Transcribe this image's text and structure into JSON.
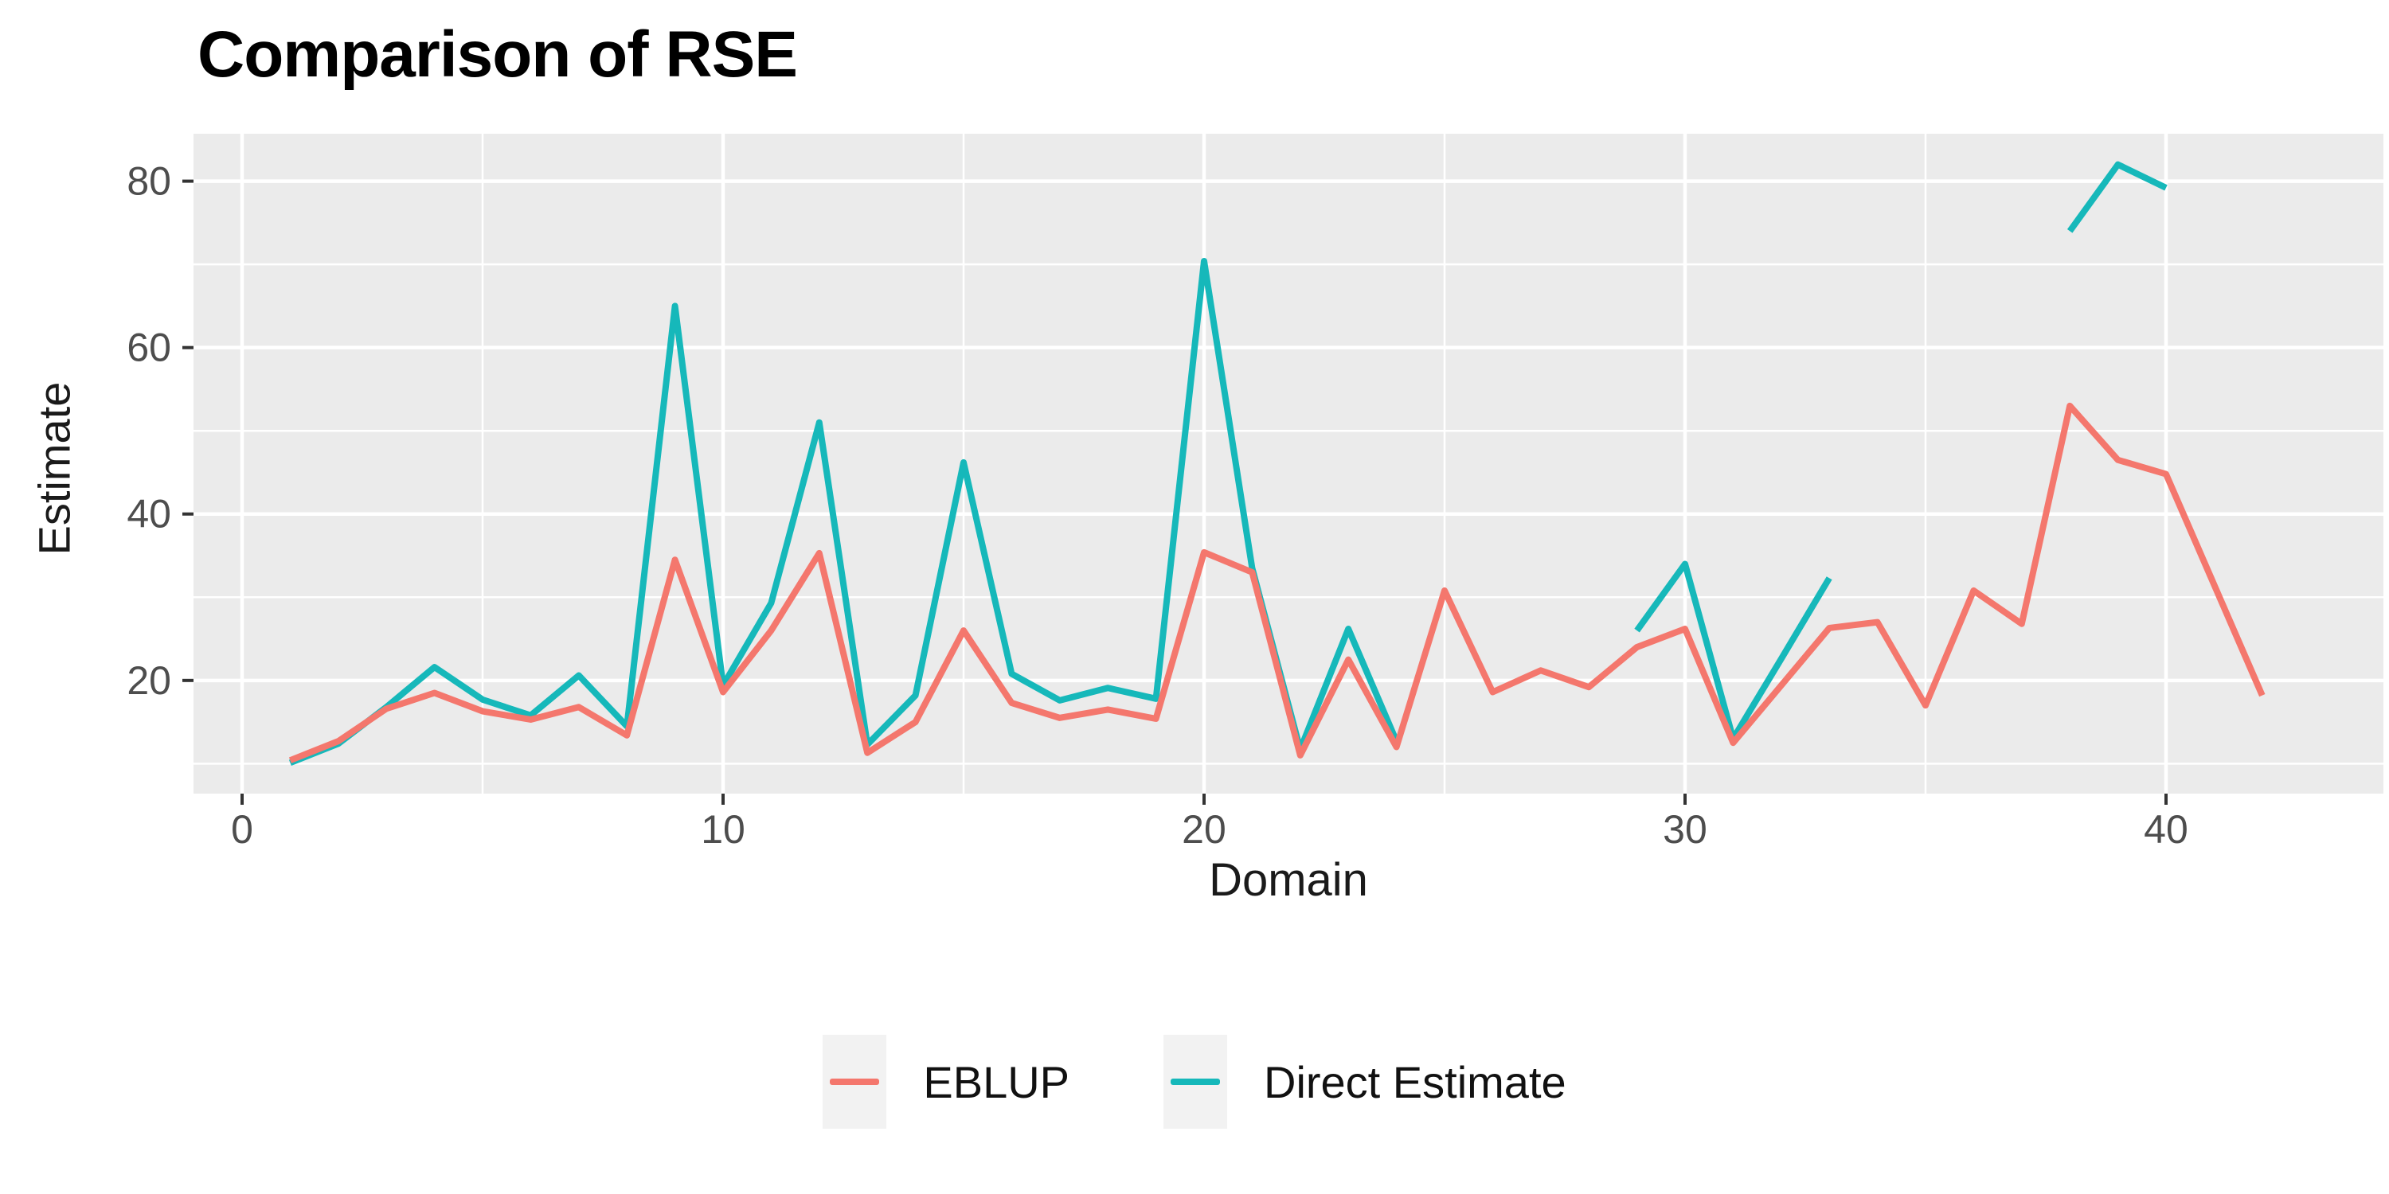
{
  "chart_data": {
    "type": "line",
    "title": "Comparison of RSE",
    "xlabel": "Domain",
    "ylabel": "Estimate",
    "x_tick_labels": [
      "0",
      "10",
      "20",
      "30",
      "40"
    ],
    "x_ticks": [
      0,
      10,
      20,
      30,
      40
    ],
    "x_minor_ticks": [
      5,
      15,
      25,
      35
    ],
    "y_tick_labels": [
      "20",
      "40",
      "60",
      "80"
    ],
    "y_ticks": [
      20,
      40,
      60,
      80
    ],
    "y_minor_ticks": [
      10,
      30,
      50,
      70
    ],
    "xlim": [
      -1.01,
      44.52
    ],
    "ylim": [
      6.4,
      85.7
    ],
    "grid": true,
    "legend_position": "bottom",
    "x": [
      1,
      2,
      3,
      4,
      5,
      6,
      7,
      8,
      9,
      10,
      11,
      12,
      13,
      14,
      15,
      16,
      17,
      18,
      19,
      20,
      21,
      22,
      23,
      24,
      25,
      26,
      27,
      28,
      29,
      30,
      31,
      32,
      33,
      34,
      35,
      36,
      37,
      38,
      39,
      40,
      41,
      42
    ],
    "series": [
      {
        "name": "EBLUP",
        "color": "#F4776D",
        "values": [
          10.4,
          12.7,
          16.6,
          18.5,
          16.3,
          15.3,
          16.8,
          13.4,
          34.5,
          18.6,
          26,
          35.3,
          11.3,
          15,
          26,
          17.3,
          15.5,
          16.5,
          15.4,
          35.4,
          33,
          11,
          22.5,
          12,
          30.8,
          18.6,
          21.2,
          19.2,
          24,
          26.2,
          12.5,
          19.4,
          26.3,
          27,
          17,
          30.8,
          26.8,
          53,
          46.5,
          44.8,
          31.5,
          18.2
        ]
      },
      {
        "name": "Direct Estimate",
        "color": "#16B8BA",
        "values": [
          10.1,
          12.4,
          16.8,
          21.6,
          17.7,
          15.8,
          20.6,
          14.5,
          65,
          19.4,
          29.3,
          51,
          12.3,
          18.2,
          46.2,
          20.8,
          17.6,
          19.1,
          17.8,
          70.4,
          33.5,
          11.7,
          26.2,
          12.7,
          null,
          null,
          null,
          null,
          26,
          34,
          13,
          22.6,
          32.3,
          null,
          null,
          null,
          null,
          74,
          82,
          79.2,
          null,
          null
        ]
      }
    ],
    "panel_bg": "#EBEBEB",
    "grid_color": "#FFFFFF",
    "tick_color": "#333333",
    "tick_label_color": "#4D4D4D",
    "line_width": 8
  }
}
